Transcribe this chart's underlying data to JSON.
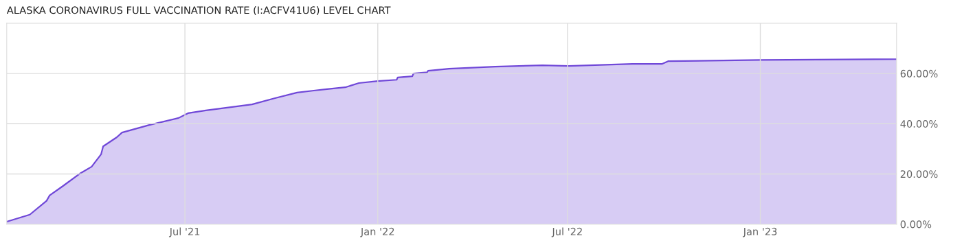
{
  "chart_data": {
    "type": "area",
    "title": "ALASKA CORONAVIRUS FULL VACCINATION RATE (I:ACFV41U6) LEVEL CHART",
    "x": [
      "2021-01-12",
      "2021-02-03",
      "2021-02-19",
      "2021-02-22",
      "2021-03-06",
      "2021-03-23",
      "2021-04-03",
      "2021-04-12",
      "2021-04-14",
      "2021-04-27",
      "2021-05-02",
      "2021-05-28",
      "2021-06-25",
      "2021-07-04",
      "2021-07-21",
      "2021-09-03",
      "2021-09-25",
      "2021-10-16",
      "2021-11-01",
      "2021-11-12",
      "2021-12-01",
      "2021-12-14",
      "2022-01-01",
      "2022-01-19",
      "2022-01-20",
      "2022-02-03",
      "2022-02-04",
      "2022-02-17",
      "2022-02-18",
      "2022-03-10",
      "2022-04-23",
      "2022-06-07",
      "2022-07-02",
      "2022-09-01",
      "2022-09-29",
      "2022-10-05",
      "2023-01-01",
      "2023-05-11"
    ],
    "series": [
      {
        "color": "#7048d8",
        "values": [
          1.0,
          3.8,
          9.3,
          11.5,
          15,
          20.2,
          22.9,
          27.8,
          31,
          34.6,
          36.5,
          39.5,
          42.3,
          44.2,
          45.3,
          47.7,
          50.2,
          52.4,
          53.2,
          53.7,
          54.5,
          56.2,
          57,
          57.5,
          58.4,
          58.9,
          60,
          60.5,
          61.1,
          61.9,
          62.7,
          63.3,
          63,
          63.8,
          63.8,
          64.9,
          65.4,
          65.7
        ]
      }
    ],
    "xlim": [
      "2021-01-12",
      "2023-05-11"
    ],
    "xticks": [
      {
        "value": "2021-07-01",
        "label": "Jul '21"
      },
      {
        "value": "2022-01-01",
        "label": "Jan '22"
      },
      {
        "value": "2022-07-01",
        "label": "Jul '22"
      },
      {
        "value": "2023-01-01",
        "label": "Jan '23"
      }
    ],
    "ylim": [
      0,
      80
    ],
    "yticks": [
      {
        "value": 0,
        "label": "0.00%"
      },
      {
        "value": 20,
        "label": "20.00%"
      },
      {
        "value": 40,
        "label": "40.00%"
      },
      {
        "value": 60,
        "label": "60.00%"
      }
    ],
    "grid": true,
    "legend": false
  }
}
